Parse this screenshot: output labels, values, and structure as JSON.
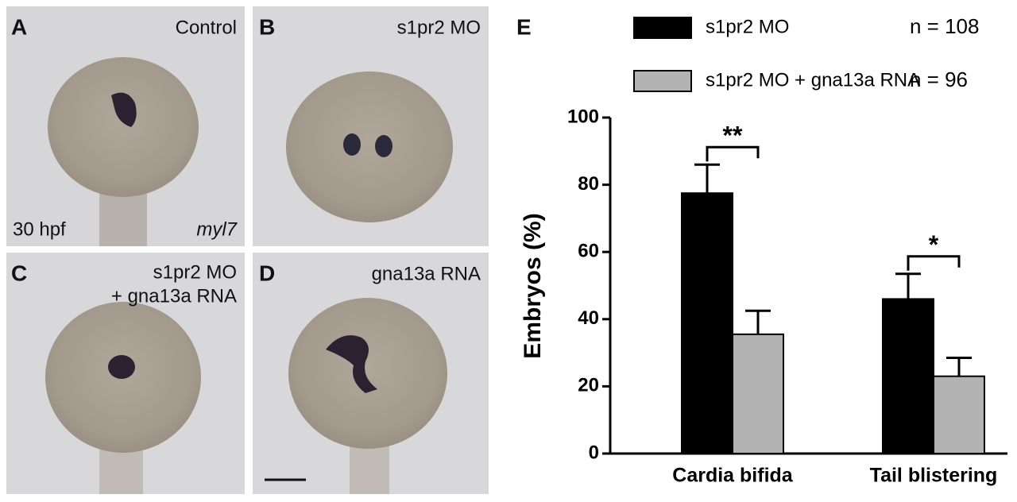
{
  "panels": [
    {
      "letter": "A",
      "label": [
        "Control"
      ],
      "stage": "30 hpf",
      "marker": "myl7"
    },
    {
      "letter": "B",
      "label": [
        "s1pr2 MO"
      ]
    },
    {
      "letter": "C",
      "label": [
        "s1pr2 MO",
        "+ gna13a RNA"
      ]
    },
    {
      "letter": "D",
      "label": [
        "gna13a RNA"
      ]
    }
  ],
  "chart_data": {
    "type": "bar",
    "panel_letter": "E",
    "ylabel": "Embryos (%)",
    "categories": [
      "Cardia bifida",
      "Tail blistering"
    ],
    "series": [
      {
        "name": "s1pr2 MO",
        "n_label": "n = 108",
        "color": "#000000",
        "values": [
          77.5,
          46
        ],
        "errors": [
          8.5,
          7.5
        ]
      },
      {
        "name": "s1pr2 MO + gna13a RNA",
        "n_label": "n = 96",
        "color": "#b3b3b3",
        "values": [
          35.5,
          23
        ],
        "errors": [
          7,
          5.5
        ]
      }
    ],
    "significance": [
      "**",
      "*"
    ],
    "ylim": [
      0,
      100
    ],
    "yticks": [
      0,
      20,
      40,
      60,
      80,
      100
    ]
  }
}
